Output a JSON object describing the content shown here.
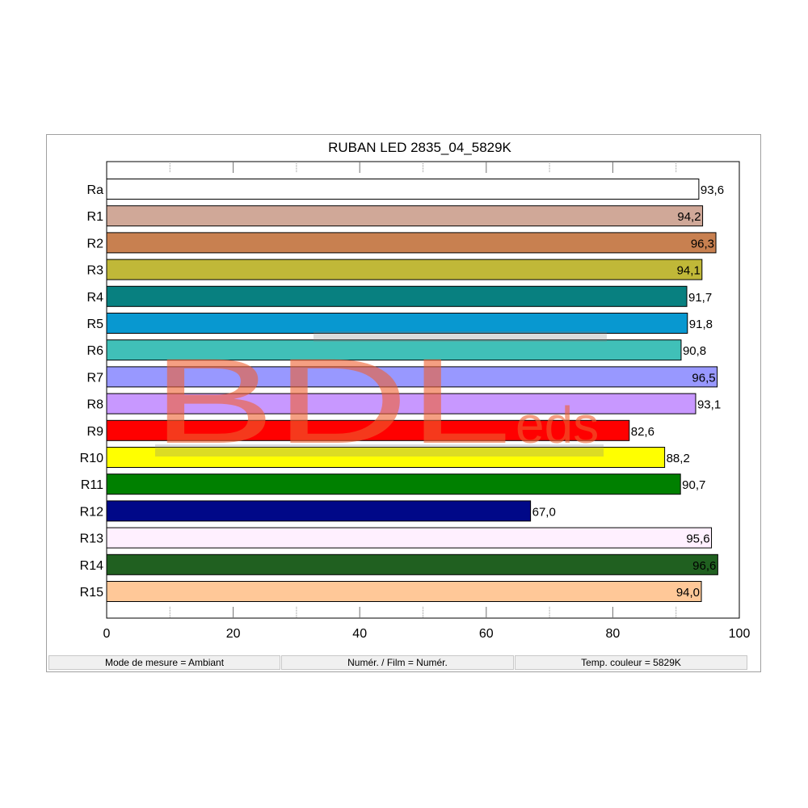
{
  "chart_data": {
    "type": "bar",
    "orientation": "horizontal",
    "title": "RUBAN LED 2835_04_5829K",
    "xlabel": "",
    "ylabel": "",
    "xlim": [
      0,
      100
    ],
    "x_ticks": [
      "0",
      "20",
      "40",
      "60",
      "80",
      "100"
    ],
    "x_tick_values": [
      0,
      20,
      40,
      60,
      80,
      100
    ],
    "minor_tick_step": 10,
    "grid": true,
    "categories": [
      "Ra",
      "R1",
      "R2",
      "R3",
      "R4",
      "R5",
      "R6",
      "R7",
      "R8",
      "R9",
      "R10",
      "R11",
      "R12",
      "R13",
      "R14",
      "R15"
    ],
    "values": [
      93.6,
      94.2,
      96.3,
      94.1,
      91.7,
      91.8,
      90.8,
      96.5,
      93.1,
      82.6,
      88.2,
      90.7,
      67.0,
      95.6,
      96.6,
      94.0
    ],
    "value_labels": [
      "93,6",
      "94,2",
      "96,3",
      "94,1",
      "91,7",
      "91,8",
      "90,8",
      "96,5",
      "93,1",
      "82,6",
      "88,2",
      "90,7",
      "67,0",
      "95,6",
      "96,6",
      "94,0"
    ],
    "bar_colors": [
      "#ffffff",
      "#d0a898",
      "#c88050",
      "#c0b838",
      "#088080",
      "#0898d0",
      "#40c0b8",
      "#9898ff",
      "#c898ff",
      "#ff0000",
      "#ffff00",
      "#008000",
      "#000888",
      "#fff0ff",
      "#206020",
      "#ffc898"
    ],
    "label_inside_threshold": 94
  },
  "status_bar": {
    "mode": "Mode de mesure = Ambiant",
    "film": "Numér. / Film = Numér.",
    "temp": "Temp. couleur = 5829K"
  },
  "watermark": {
    "text_main": "BDL",
    "text_small": "eds",
    "color": "#f06030"
  }
}
